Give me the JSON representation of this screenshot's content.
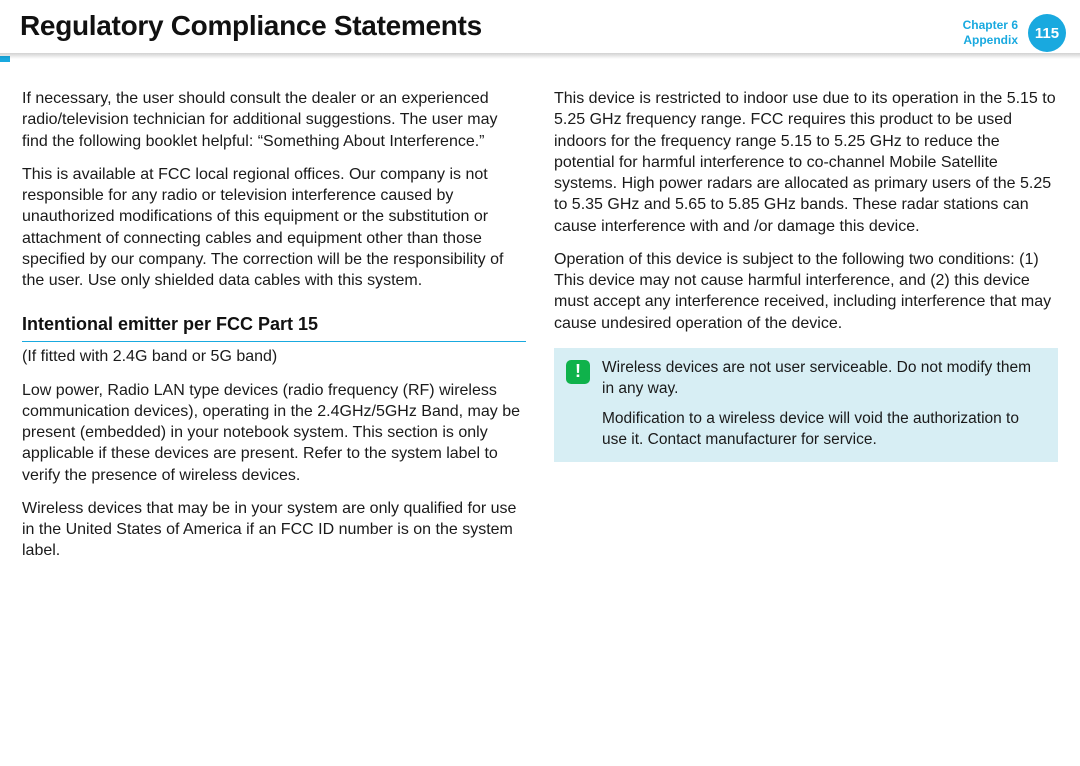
{
  "header": {
    "title": "Regulatory Compliance Statements",
    "chapter_label": "Chapter 6",
    "section_label": "Appendix",
    "page_number": "115"
  },
  "left": {
    "p1": "If necessary, the user should consult the dealer or an experienced radio/television technician for additional suggestions. The user may find the following booklet helpful: “Something About Interference.”",
    "p2": "This is available at FCC local regional offices. Our company is not responsible for any radio or television interference caused by unauthorized modifications of this equipment or the substitution or attachment of connecting cables and equipment other than those specified by our company. The correction will be the responsibility of the user. Use only shielded data cables with this system.",
    "subhead": "Intentional emitter per FCC Part 15",
    "p3": "(If fitted with 2.4G band or 5G band)",
    "p4": "Low power, Radio LAN type devices (radio frequency (RF) wireless communication devices), operating in the 2.4GHz/5GHz Band, may be present (embedded) in your notebook system. This section is only applicable if these devices are present. Refer to the system label to verify the presence of wireless devices.",
    "p5": "Wireless devices that may be in your system are only qualified for use in the United States of America if an FCC ID number is on the system label."
  },
  "right": {
    "p1": "This device is restricted to indoor use due to its operation in the 5.15 to 5.25 GHz frequency range. FCC requires this product to be used indoors for the frequency range 5.15 to 5.25 GHz to reduce the potential for harmful interference to co-channel Mobile Satellite systems. High power radars are allocated as primary users of the 5.25 to 5.35 GHz and 5.65 to 5.85 GHz bands. These radar stations can cause interference with and /or damage this device.",
    "p2": "Operation of this device is subject to the following two conditions: (1) This device may not cause harmful interference, and (2) this device must accept any interference received, including interference that may cause undesired operation of the device.",
    "callout": {
      "icon_glyph": "!",
      "line1": "Wireless devices are not user serviceable. Do not modify them in any way.",
      "line2": "Modification to a wireless device will void the authorization to use it. Contact manufacturer for service."
    }
  },
  "colors": {
    "accent": "#19a9df",
    "callout_bg": "#d7eef4",
    "callout_icon_bg": "#0fb24b",
    "text": "#1a1a1a"
  }
}
